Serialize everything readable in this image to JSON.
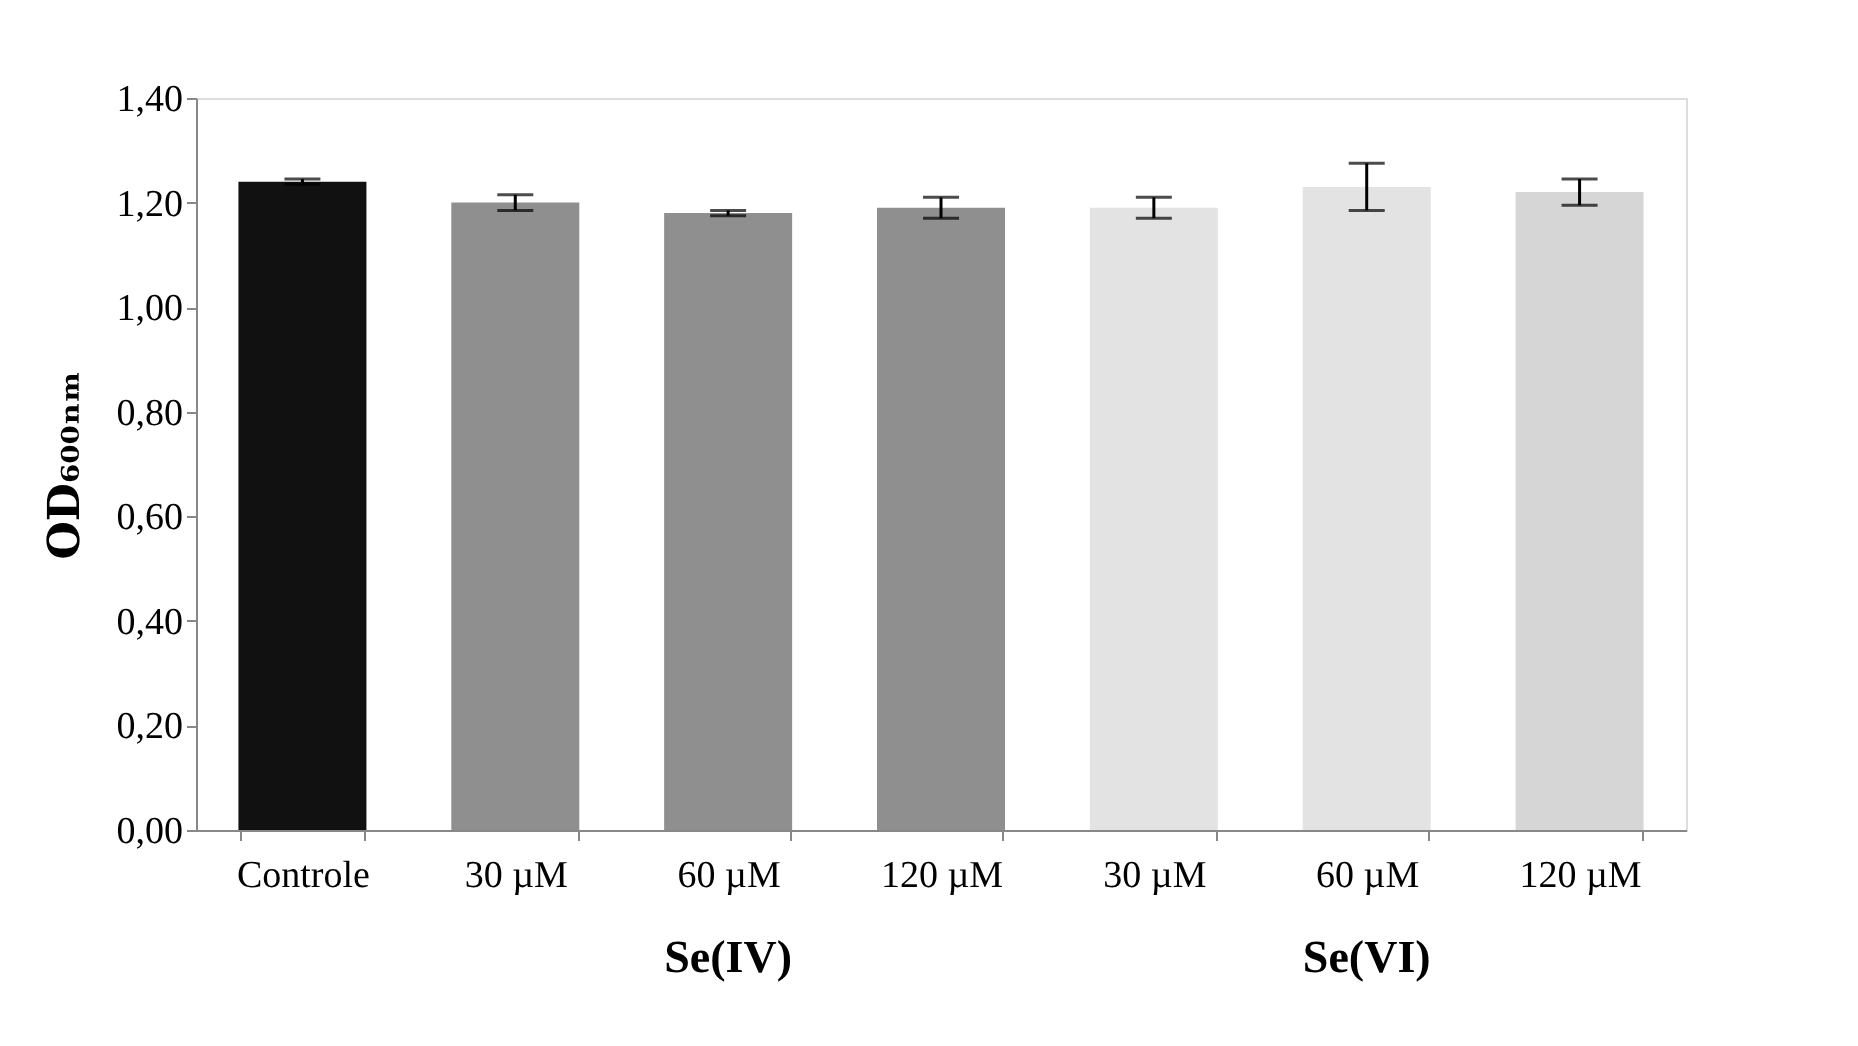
{
  "chart_data": {
    "type": "bar",
    "categories": [
      "Controle",
      "30 µM",
      "60 µM",
      "120 µM",
      "30 µM",
      "60 µM",
      "120 µM"
    ],
    "values": [
      1.24,
      1.2,
      1.18,
      1.19,
      1.19,
      1.23,
      1.22
    ],
    "errors": [
      0.005,
      0.015,
      0.005,
      0.02,
      0.02,
      0.045,
      0.025
    ],
    "colors": [
      "#111111",
      "#8f8f8f",
      "#8f8f8f",
      "#8f8f8f",
      "#e3e3e3",
      "#e3e3e3",
      "#d6d6d6"
    ],
    "ylabel": "OD₆₀₀ₙₘ",
    "ylim": [
      0,
      1.4
    ],
    "yticks": [
      {
        "value": 0,
        "label": "0,00"
      },
      {
        "value": 0.2,
        "label": "0,20"
      },
      {
        "value": 0.4,
        "label": "0,40"
      },
      {
        "value": 0.6,
        "label": "0,60"
      },
      {
        "value": 0.8,
        "label": "0,80"
      },
      {
        "value": 1.0,
        "label": "1,00"
      },
      {
        "value": 1.2,
        "label": "1,20"
      },
      {
        "value": 1.4,
        "label": "1,40"
      }
    ],
    "annotations": [
      "Se(IV)",
      "Se(VI)"
    ],
    "grid": false
  }
}
